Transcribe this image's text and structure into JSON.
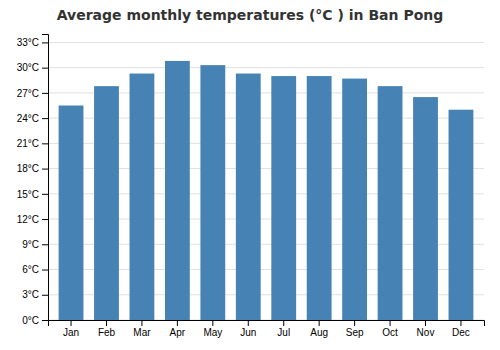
{
  "chart_data": {
    "type": "bar",
    "title": "Average monthly temperatures (°C ) in Ban Pong",
    "categories": [
      "Jan",
      "Feb",
      "Mar",
      "Apr",
      "May",
      "Jun",
      "Jul",
      "Aug",
      "Sep",
      "Oct",
      "Nov",
      "Dec"
    ],
    "values": [
      25.5,
      27.8,
      29.3,
      30.8,
      30.3,
      29.3,
      29.0,
      29.0,
      28.7,
      27.8,
      26.5,
      25.0
    ],
    "ylim": [
      0,
      34
    ],
    "yticks": [
      {
        "value": 0,
        "label": "0°C"
      },
      {
        "value": 3,
        "label": "3°C"
      },
      {
        "value": 6,
        "label": "6°C"
      },
      {
        "value": 9,
        "label": "9°C"
      },
      {
        "value": 12,
        "label": "12°C"
      },
      {
        "value": 15,
        "label": "15°C"
      },
      {
        "value": 18,
        "label": "18°C"
      },
      {
        "value": 21,
        "label": "21°C"
      },
      {
        "value": 24,
        "label": "24°C"
      },
      {
        "value": 27,
        "label": "27°C"
      },
      {
        "value": 30,
        "label": "30°C"
      },
      {
        "value": 33,
        "label": "33°C"
      }
    ],
    "grid": true
  }
}
